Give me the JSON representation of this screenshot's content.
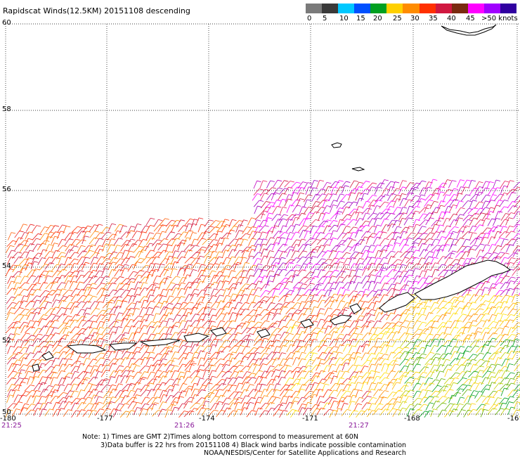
{
  "title": "Rapidscat Winds(12.5KM) 20151108 descending",
  "legend": {
    "labels": [
      "0",
      "5",
      "10",
      "15",
      "20",
      "25",
      "30",
      "35",
      "40",
      "45",
      ">50 knots"
    ],
    "colors": [
      "#7a7a7a",
      "#3a3a3a",
      "#00c8ff",
      "#0050ff",
      "#00a020",
      "#ffd000",
      "#ff8c00",
      "#ff3000",
      "#d01840",
      "#7a2a10",
      "#ff00ff",
      "#a000ff",
      "#3000a0"
    ]
  },
  "lat_labels": [
    "60",
    "58",
    "56",
    "54",
    "52",
    "50"
  ],
  "lon_labels": [
    "-180",
    "-177",
    "-174",
    "-171",
    "-168",
    "-16"
  ],
  "time_labels": [
    "21:25",
    "21:26",
    "21:27"
  ],
  "notes": {
    "line1": "Note: 1) Times are GMT 2)Times along bottom correspond to measurement at 60N",
    "line2": "3)Data buffer is 22 hrs from 20151108 4) Black wind barbs indicate possible contamination",
    "line3": "NOAA/NESDIS/Center for Satellite Applications and Research"
  },
  "wind_swaths": {
    "west_swath": "red-orange 30-40 knots",
    "north_swath": "magenta-purple 40-50 knots",
    "southeast": "yellow-green 15-25 knots"
  }
}
